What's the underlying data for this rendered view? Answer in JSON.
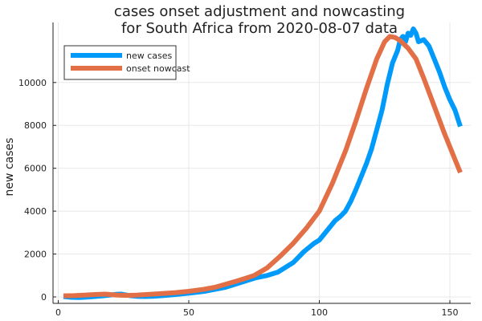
{
  "chart_data": {
    "type": "line",
    "title_line1": "cases onset adjustment and nowcasting",
    "title_line2": "for South Africa from 2020-08-07 data",
    "xlabel": "",
    "ylabel": "new cases",
    "xlim": [
      -2,
      158
    ],
    "ylim": [
      -300,
      12800
    ],
    "xticks": [
      0,
      50,
      100,
      150
    ],
    "yticks": [
      0,
      2000,
      4000,
      6000,
      8000,
      10000
    ],
    "grid": true,
    "legend_position": "top-left",
    "series": [
      {
        "name": "new cases",
        "color": "#009AFA",
        "x": [
          2,
          5,
          8,
          11,
          14,
          17,
          20,
          22,
          24,
          26,
          28,
          30,
          33,
          36,
          40,
          44,
          48,
          52,
          56,
          60,
          64,
          68,
          72,
          76,
          80,
          84,
          86,
          88,
          90,
          92,
          94,
          96,
          98,
          100,
          102,
          104,
          106,
          108,
          110,
          112,
          114,
          116,
          118,
          120,
          122,
          124,
          125,
          126,
          127,
          128,
          130,
          131,
          132,
          133,
          134,
          135,
          136,
          137,
          138,
          140,
          142,
          144,
          146,
          148,
          150,
          152,
          154
        ],
        "values": [
          20,
          -20,
          -30,
          -10,
          20,
          50,
          90,
          120,
          130,
          90,
          50,
          30,
          20,
          30,
          60,
          100,
          150,
          200,
          260,
          350,
          450,
          600,
          750,
          900,
          1000,
          1150,
          1300,
          1450,
          1600,
          1850,
          2100,
          2300,
          2500,
          2650,
          2950,
          3250,
          3550,
          3750,
          4000,
          4450,
          5000,
          5600,
          6200,
          6900,
          7800,
          8700,
          9300,
          9900,
          10400,
          10900,
          11500,
          12000,
          12150,
          11900,
          12300,
          12200,
          12500,
          12300,
          11900,
          12000,
          11700,
          11100,
          10500,
          9800,
          9200,
          8700,
          7950
        ]
      },
      {
        "name": "onset nowcast",
        "color": "#E26F46",
        "x": [
          2,
          6,
          10,
          14,
          18,
          22,
          26,
          30,
          35,
          40,
          45,
          50,
          55,
          60,
          65,
          70,
          75,
          80,
          85,
          90,
          95,
          100,
          105,
          110,
          114,
          118,
          122,
          125,
          127,
          129,
          131,
          134,
          137,
          140,
          144,
          148,
          152,
          154
        ],
        "values": [
          50,
          60,
          80,
          110,
          130,
          90,
          70,
          80,
          120,
          160,
          200,
          260,
          340,
          450,
          620,
          800,
          1000,
          1350,
          1900,
          2500,
          3200,
          4000,
          5300,
          6800,
          8200,
          9700,
          11100,
          11900,
          12150,
          12100,
          11950,
          11600,
          11100,
          10200,
          8900,
          7600,
          6400,
          5800
        ]
      }
    ]
  }
}
